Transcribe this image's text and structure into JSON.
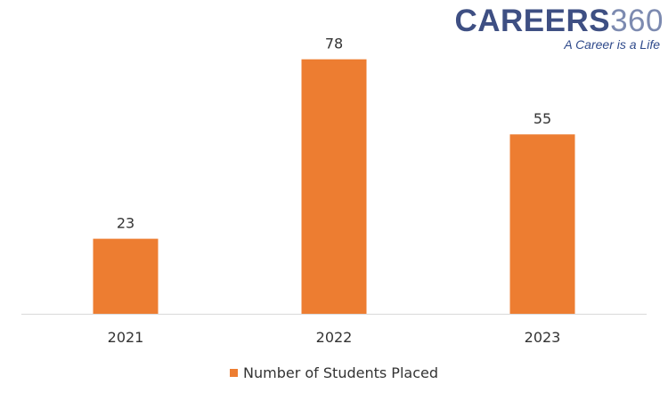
{
  "logo": {
    "word": "CAREERS",
    "number": "360",
    "tagline": "A Career is a Life"
  },
  "colors": {
    "bar": "#ed7d31",
    "axis": "#d9d9d9",
    "text": "#333333"
  },
  "chart_data": {
    "type": "bar",
    "categories": [
      "2021",
      "2022",
      "2023"
    ],
    "series": [
      {
        "name": "Number of Students Placed",
        "values": [
          23,
          78,
          55
        ]
      }
    ],
    "data_labels": true,
    "ylim": [
      0,
      85
    ],
    "grid": false,
    "legend": "bottom"
  }
}
